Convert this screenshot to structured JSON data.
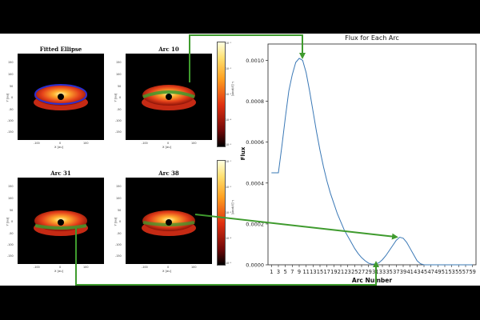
{
  "panels": [
    {
      "id": "fitted",
      "title": "Fitted Ellipse",
      "overlay": "ellipse"
    },
    {
      "id": "arc10",
      "title": "Arc 10",
      "overlay": "arc-upper"
    },
    {
      "id": "arc31",
      "title": "Arc 31",
      "overlay": "arc-lower"
    },
    {
      "id": "arc38",
      "title": "Arc 38",
      "overlay": "arc-mid"
    }
  ],
  "image_axes": {
    "xlabel": "X [au]",
    "ylabel": "Y [au]",
    "xticks": [
      "-100",
      "0",
      "100"
    ],
    "yticks": [
      "150",
      "100",
      "50",
      "0",
      "-50",
      "-100",
      "-150"
    ]
  },
  "colorbar": {
    "ticks": [
      "10⁻¹",
      "10⁻²",
      "10⁻³",
      "10⁻⁴",
      "10⁻⁵"
    ],
    "label": "Iᵥ [Jy/pixel]"
  },
  "colors": {
    "flux_line": "#3a78b6",
    "arrow": "#3f9b2e",
    "ellipse": "#2a2fd0"
  },
  "chart_data": {
    "type": "line",
    "title": "Flux for Each Arc",
    "xlabel": "Arc Number",
    "ylabel": "Flux",
    "xlim": [
      0,
      60
    ],
    "ylim": [
      0,
      0.00108
    ],
    "xticks": [
      1,
      3,
      5,
      7,
      9,
      11,
      13,
      15,
      17,
      19,
      21,
      23,
      25,
      27,
      29,
      31,
      33,
      35,
      37,
      39,
      41,
      43,
      45,
      47,
      49,
      51,
      53,
      55,
      57,
      59
    ],
    "yticks": [
      0.0,
      0.0002,
      0.0004,
      0.0006,
      0.0008,
      0.001
    ],
    "ytick_labels": [
      "0.0000",
      "0.0002",
      "0.0004",
      "0.0006",
      "0.0008",
      "0.0010"
    ],
    "series": [
      {
        "x": [
          1,
          2,
          3,
          4,
          5,
          6,
          7,
          8,
          9,
          10,
          11,
          12,
          13,
          14,
          15,
          16,
          17,
          18,
          19,
          20,
          21,
          22,
          23,
          24,
          25,
          26,
          27,
          28,
          29,
          30,
          31,
          32,
          33,
          34,
          35,
          36,
          37,
          38,
          39,
          40,
          41,
          42,
          43,
          44,
          45,
          46,
          47,
          48,
          49,
          50,
          51,
          52,
          53,
          54,
          55,
          56,
          57,
          58,
          59
        ],
        "values": [
          0.00045,
          0.00045,
          0.00045,
          0.00058,
          0.00072,
          0.00085,
          0.00093,
          0.00099,
          0.00101,
          0.001,
          0.00094,
          0.00085,
          0.00075,
          0.00065,
          0.00056,
          0.00048,
          0.00041,
          0.00035,
          0.0003,
          0.00025,
          0.00021,
          0.00017,
          0.00014,
          0.00011,
          8e-05,
          5.5e-05,
          3.5e-05,
          2e-05,
          8e-06,
          3e-06,
          4e-06,
          1e-05,
          2.5e-05,
          4.5e-05,
          7e-05,
          9.5e-05,
          0.00012,
          0.000135,
          0.00013,
          0.00011,
          8e-05,
          5e-05,
          2e-05,
          5e-06,
          0,
          0,
          0,
          0,
          0,
          0,
          0,
          0,
          0,
          0,
          0,
          0,
          0,
          0,
          0
        ]
      }
    ]
  }
}
